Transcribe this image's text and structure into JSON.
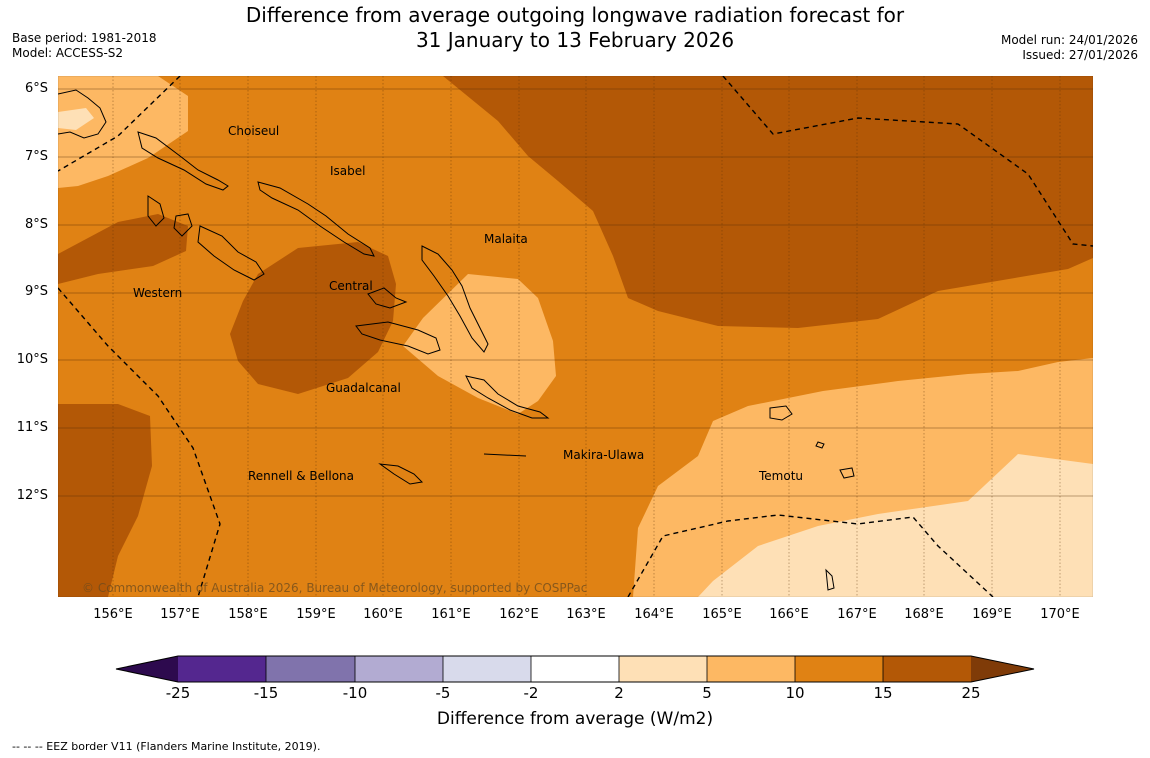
{
  "header": {
    "title_line1": "Difference from average outgoing longwave radiation forecast for",
    "title_line2": "31 January to 13 February 2026",
    "base_period": "Base period: 1981-2018",
    "model": "Model: ACCESS-S2",
    "model_run": "Model run: 24/01/2026",
    "issued": "Issued: 27/01/2026"
  },
  "map": {
    "lat_labels": [
      "6°S",
      "7°S",
      "8°S",
      "9°S",
      "10°S",
      "11°S",
      "12°S"
    ],
    "lon_labels": [
      "156°E",
      "157°E",
      "158°E",
      "159°E",
      "160°E",
      "161°E",
      "162°E",
      "163°E",
      "164°E",
      "165°E",
      "166°E",
      "167°E",
      "168°E",
      "169°E",
      "170°E"
    ],
    "regions": [
      {
        "name": "Choiseul"
      },
      {
        "name": "Isabel"
      },
      {
        "name": "Malaita"
      },
      {
        "name": "Central"
      },
      {
        "name": "Western"
      },
      {
        "name": "Guadalcanal"
      },
      {
        "name": "Makira-Ulawa"
      },
      {
        "name": "Temotu"
      },
      {
        "name": "Rennell & Bellona"
      }
    ],
    "copyright": "© Commonwealth of Australia 2026, Bureau of Meteorology, supported by COSPPac"
  },
  "colorbar": {
    "ticks": [
      "-25",
      "-15",
      "-10",
      "-5",
      "-2",
      "2",
      "5",
      "10",
      "15",
      "25"
    ],
    "colors": {
      "under": "#2d0a4e",
      "c1": "#54278f",
      "c2": "#8073ac",
      "c3": "#b2abd2",
      "c4": "#d8daeb",
      "c5": "#ffffff",
      "c6": "#fee0b6",
      "c7": "#fdb863",
      "c8": "#e08214",
      "c9": "#b35806",
      "over": "#7f3b08"
    },
    "label": "Difference from average (W/m2)"
  },
  "legend": {
    "eez": "--  --  -- EEZ border V11 (Flanders Marine Institute, 2019)."
  }
}
